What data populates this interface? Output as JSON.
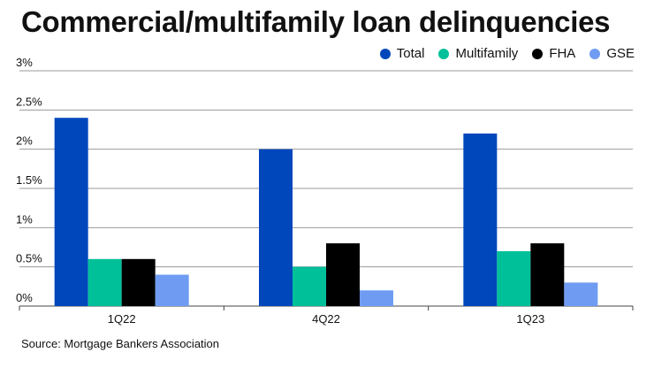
{
  "title": "Commercial/multifamily loan delinquencies",
  "source": "Source: Mortgage Bankers Association",
  "legend": [
    {
      "name": "Total",
      "color": "#0047bb"
    },
    {
      "name": "Multifamily",
      "color": "#00c09a"
    },
    {
      "name": "FHA",
      "color": "#000000"
    },
    {
      "name": "GSE",
      "color": "#6f9cf2"
    }
  ],
  "chart_data": {
    "type": "bar",
    "categories": [
      "1Q22",
      "4Q22",
      "1Q23"
    ],
    "series": [
      {
        "name": "Total",
        "values": [
          2.4,
          2.0,
          2.2
        ],
        "color": "#0047bb"
      },
      {
        "name": "Multifamily",
        "values": [
          0.6,
          0.5,
          0.7
        ],
        "color": "#00c09a"
      },
      {
        "name": "FHA",
        "values": [
          0.6,
          0.8,
          0.8
        ],
        "color": "#000000"
      },
      {
        "name": "GSE",
        "values": [
          0.4,
          0.2,
          0.3
        ],
        "color": "#6f9cf2"
      }
    ],
    "ylim": [
      0,
      3
    ],
    "yticks": [
      0,
      0.5,
      1,
      1.5,
      2,
      2.5,
      3
    ],
    "ytick_labels": [
      "0%",
      "0.5%",
      "1%",
      "1.5%",
      "2%",
      "2.5%",
      "3%"
    ],
    "grid": true,
    "legend_position": "top-right",
    "xlabel": "",
    "ylabel": ""
  }
}
